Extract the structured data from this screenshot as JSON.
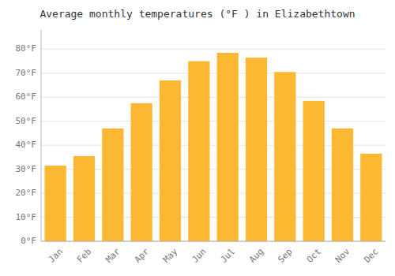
{
  "chart_data": {
    "type": "bar",
    "title": "Average monthly temperatures (°F ) in Elizabethtown",
    "categories": [
      "Jan",
      "Feb",
      "Mar",
      "Apr",
      "May",
      "Jun",
      "Jul",
      "Aug",
      "Sep",
      "Oct",
      "Nov",
      "Dec"
    ],
    "values": [
      31.5,
      35.5,
      47.0,
      57.5,
      67.0,
      75.0,
      78.5,
      76.5,
      70.5,
      58.5,
      47.0,
      36.5
    ],
    "color": "#FDB833",
    "ylim": [
      0,
      88
    ],
    "yticks": [
      {
        "value": 0,
        "label": "0°F"
      },
      {
        "value": 10,
        "label": "10°F"
      },
      {
        "value": 20,
        "label": "20°F"
      },
      {
        "value": 30,
        "label": "30°F"
      },
      {
        "value": 40,
        "label": "40°F"
      },
      {
        "value": 50,
        "label": "50°F"
      },
      {
        "value": 60,
        "label": "60°F"
      },
      {
        "value": 70,
        "label": "70°F"
      },
      {
        "value": 80,
        "label": "80°F"
      }
    ],
    "grid": true
  }
}
